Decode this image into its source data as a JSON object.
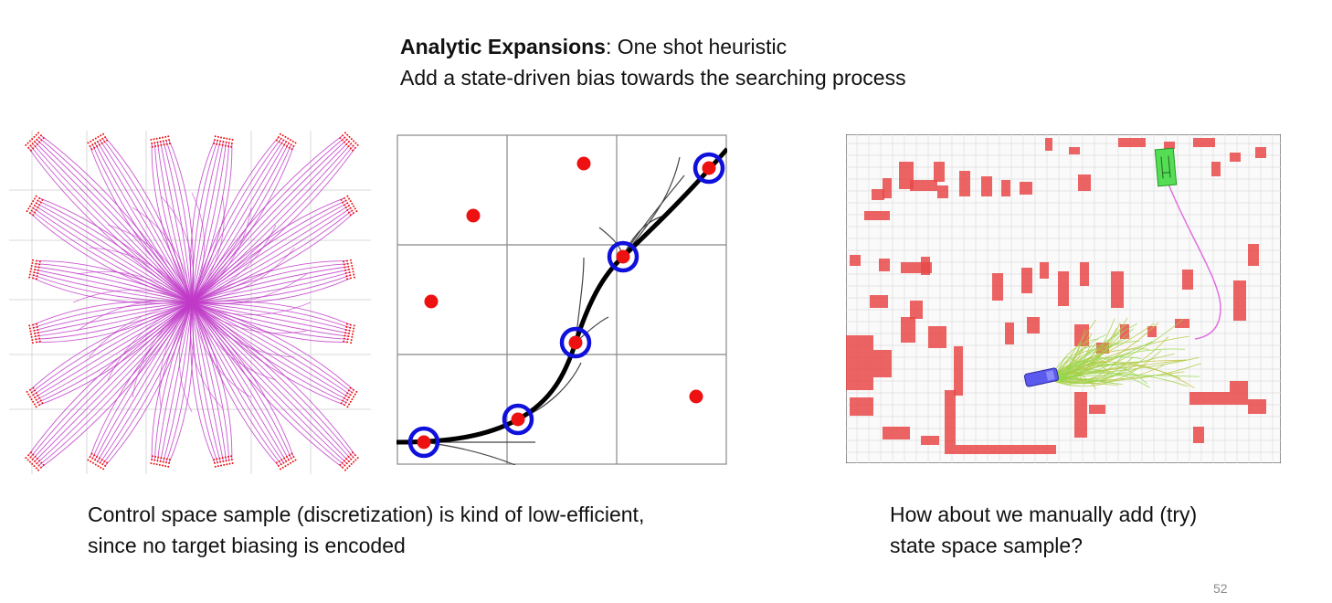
{
  "header": {
    "title_bold": "Analytic Expansions",
    "title_rest": ": One shot heuristic",
    "subtitle": "Add a state-driven bias towards the searching process"
  },
  "captions": {
    "left_line1": "Control space sample (discretization) is kind of low-efficient,",
    "left_line2": "since no target biasing is encoded",
    "right_line1": "How about we manually add (try)",
    "right_line2": "state space sample?"
  },
  "page_number": "52",
  "colors": {
    "fan_lines": "#c03ac8",
    "grid_sample": "#ee1111",
    "expanded_ring": "#1010dd",
    "path": "#000000",
    "map_obstacles": "#e84848",
    "map_grid": "#dddddd",
    "start_box": "#44dd44",
    "goal_car": "#5858e8",
    "connector": "#e070e0"
  }
}
